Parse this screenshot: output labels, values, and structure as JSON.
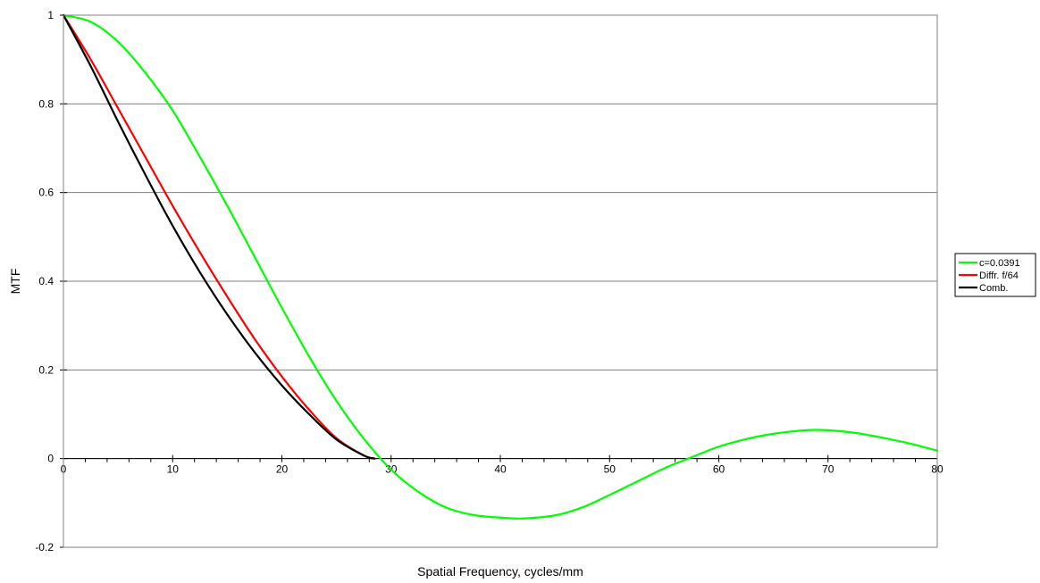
{
  "chart_data": {
    "type": "line",
    "title": "",
    "xlabel": "Spatial Frequency, cycles/mm",
    "ylabel": "MTF",
    "xlim": [
      0,
      80
    ],
    "ylim": [
      -0.2,
      1
    ],
    "xticks": [
      0,
      10,
      20,
      30,
      40,
      50,
      60,
      70,
      80
    ],
    "xtick_labels": [
      "0",
      "10",
      "20",
      "30",
      "40",
      "50",
      "60",
      "70",
      "80"
    ],
    "yticks": [
      -0.2,
      0,
      0.2,
      0.4,
      0.6,
      0.8,
      1
    ],
    "ytick_labels": [
      "-0.2",
      "0",
      "0.2",
      "0.4",
      "0.6",
      "0.8",
      "1"
    ],
    "grid": "horizontal",
    "legend_position": "right",
    "series": [
      {
        "name": "c=0.0391",
        "color": "#00ff00",
        "x": [
          0,
          2.5,
          5,
          7.5,
          10,
          12.5,
          15,
          17.5,
          20,
          22.5,
          25,
          27.5,
          30,
          32.5,
          35,
          37.5,
          40,
          42,
          45,
          47.5,
          50,
          52.5,
          55,
          57.5,
          60,
          62.5,
          65,
          68,
          70,
          72.5,
          75,
          77.5,
          80
        ],
        "y": [
          1,
          0.985,
          0.94,
          0.87,
          0.785,
          0.68,
          0.57,
          0.455,
          0.34,
          0.23,
          0.13,
          0.045,
          -0.025,
          -0.075,
          -0.11,
          -0.127,
          -0.133,
          -0.135,
          -0.128,
          -0.11,
          -0.082,
          -0.052,
          -0.022,
          0.003,
          0.027,
          0.044,
          0.056,
          0.064,
          0.064,
          0.058,
          0.047,
          0.034,
          0.018
        ]
      },
      {
        "name": "Diffr. f/64",
        "color": "#ff0000",
        "x": [
          0,
          2.5,
          5,
          7.5,
          10,
          12.5,
          15,
          17.5,
          20,
          22.5,
          25,
          27.5,
          28.5
        ],
        "y": [
          1,
          0.9,
          0.79,
          0.68,
          0.57,
          0.465,
          0.365,
          0.27,
          0.185,
          0.11,
          0.046,
          0.007,
          0
        ]
      },
      {
        "name": "Comb.",
        "color": "#000000",
        "x": [
          0,
          2.5,
          5,
          7.5,
          10,
          12.5,
          15,
          17.5,
          20,
          22.5,
          25,
          27.5,
          28.5
        ],
        "y": [
          1,
          0.885,
          0.76,
          0.64,
          0.525,
          0.42,
          0.325,
          0.24,
          0.165,
          0.1,
          0.043,
          0.007,
          0
        ]
      }
    ]
  }
}
